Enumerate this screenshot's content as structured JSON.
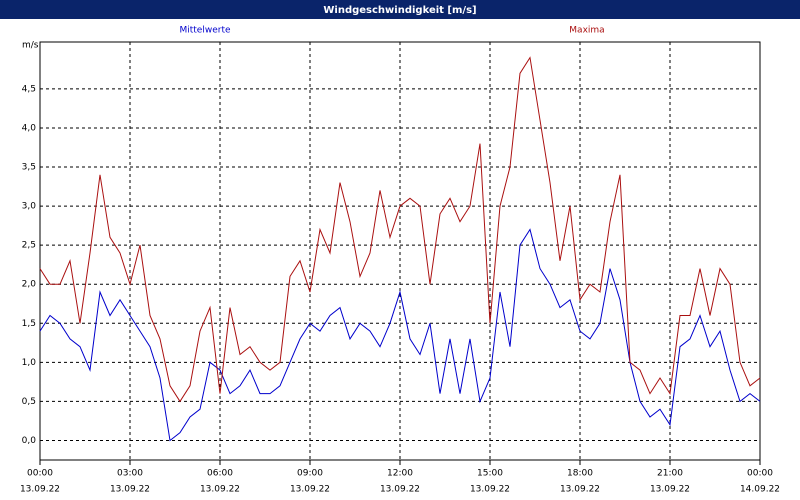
{
  "chart_data": {
    "type": "line",
    "title": "Windgeschwindigkeit [m/s]",
    "y_unit_label": "m/s",
    "x": [
      0,
      20,
      40,
      60,
      80,
      100,
      120,
      140,
      160,
      180,
      200,
      220,
      240,
      260,
      280,
      300,
      320,
      340,
      360,
      380,
      400,
      420,
      440,
      460,
      480,
      500,
      520,
      540,
      560,
      580,
      600,
      620,
      640,
      660,
      680,
      700,
      720,
      740,
      760,
      780,
      800,
      820,
      840,
      860,
      880,
      900,
      920,
      940,
      960,
      980,
      1000,
      1020,
      1040,
      1060,
      1080,
      1100,
      1120,
      1140,
      1160,
      1180,
      1200,
      1220,
      1240,
      1260,
      1280,
      1300,
      1320,
      1340,
      1360,
      1380,
      1400,
      1420,
      1440
    ],
    "series": [
      {
        "name": "Mittelwerte",
        "color": "#0000cc",
        "values": [
          1.4,
          1.6,
          1.5,
          1.3,
          1.2,
          0.9,
          1.9,
          1.6,
          1.8,
          1.6,
          1.4,
          1.2,
          0.8,
          0.0,
          0.1,
          0.3,
          0.4,
          1.0,
          0.9,
          0.6,
          0.7,
          0.9,
          0.6,
          0.6,
          0.7,
          1.0,
          1.3,
          1.5,
          1.4,
          1.6,
          1.7,
          1.3,
          1.5,
          1.4,
          1.2,
          1.5,
          1.9,
          1.3,
          1.1,
          1.5,
          0.6,
          1.3,
          0.6,
          1.3,
          0.5,
          0.8,
          1.9,
          1.2,
          2.5,
          2.7,
          2.2,
          2.0,
          1.7,
          1.8,
          1.4,
          1.3,
          1.5,
          2.2,
          1.8,
          1.0,
          0.5,
          0.3,
          0.4,
          0.2,
          1.2,
          1.3,
          1.6,
          1.2,
          1.4,
          0.9,
          0.5,
          0.6,
          0.5
        ]
      },
      {
        "name": "Maxima",
        "color": "#aa1010",
        "values": [
          2.2,
          2.0,
          2.0,
          2.3,
          1.5,
          2.4,
          3.4,
          2.6,
          2.4,
          2.0,
          2.5,
          1.6,
          1.3,
          0.7,
          0.5,
          0.7,
          1.4,
          1.7,
          0.6,
          1.7,
          1.1,
          1.2,
          1.0,
          0.9,
          1.0,
          2.1,
          2.3,
          1.9,
          2.7,
          2.4,
          3.3,
          2.8,
          2.1,
          2.4,
          3.2,
          2.6,
          3.0,
          3.1,
          3.0,
          2.0,
          2.9,
          3.1,
          2.8,
          3.0,
          3.8,
          1.5,
          3.0,
          3.5,
          4.7,
          4.9,
          4.1,
          3.3,
          2.3,
          3.0,
          1.8,
          2.0,
          1.9,
          2.8,
          3.4,
          1.0,
          0.9,
          0.6,
          0.8,
          0.6,
          1.6,
          1.6,
          2.2,
          1.6,
          2.2,
          2.0,
          1.0,
          0.7,
          0.8
        ]
      }
    ],
    "xlim": [
      0,
      1440
    ],
    "xticks": [
      {
        "value": 0,
        "label": "00:00"
      },
      {
        "value": 180,
        "label": "03:00"
      },
      {
        "value": 360,
        "label": "06:00"
      },
      {
        "value": 540,
        "label": "09:00"
      },
      {
        "value": 720,
        "label": "12:00"
      },
      {
        "value": 900,
        "label": "15:00"
      },
      {
        "value": 1080,
        "label": "18:00"
      },
      {
        "value": 1260,
        "label": "21:00"
      },
      {
        "value": 1440,
        "label": "00:00"
      }
    ],
    "xtick_dates": [
      "13.09.22",
      "13.09.22",
      "13.09.22",
      "13.09.22",
      "13.09.22",
      "13.09.22",
      "13.09.22",
      "13.09.22",
      "14.09.22"
    ],
    "ylim": [
      -0.25,
      5.1
    ],
    "yticks": [
      {
        "value": 0,
        "label": "0,0"
      },
      {
        "value": 0.5,
        "label": "0,5"
      },
      {
        "value": 1,
        "label": "1,0"
      },
      {
        "value": 1.5,
        "label": "1,5"
      },
      {
        "value": 2,
        "label": "2,0"
      },
      {
        "value": 2.5,
        "label": "2,5"
      },
      {
        "value": 3,
        "label": "3,0"
      },
      {
        "value": 3.5,
        "label": "3,5"
      },
      {
        "value": 4,
        "label": "4,0"
      },
      {
        "value": 4.5,
        "label": "4,5"
      }
    ],
    "grid": true
  }
}
